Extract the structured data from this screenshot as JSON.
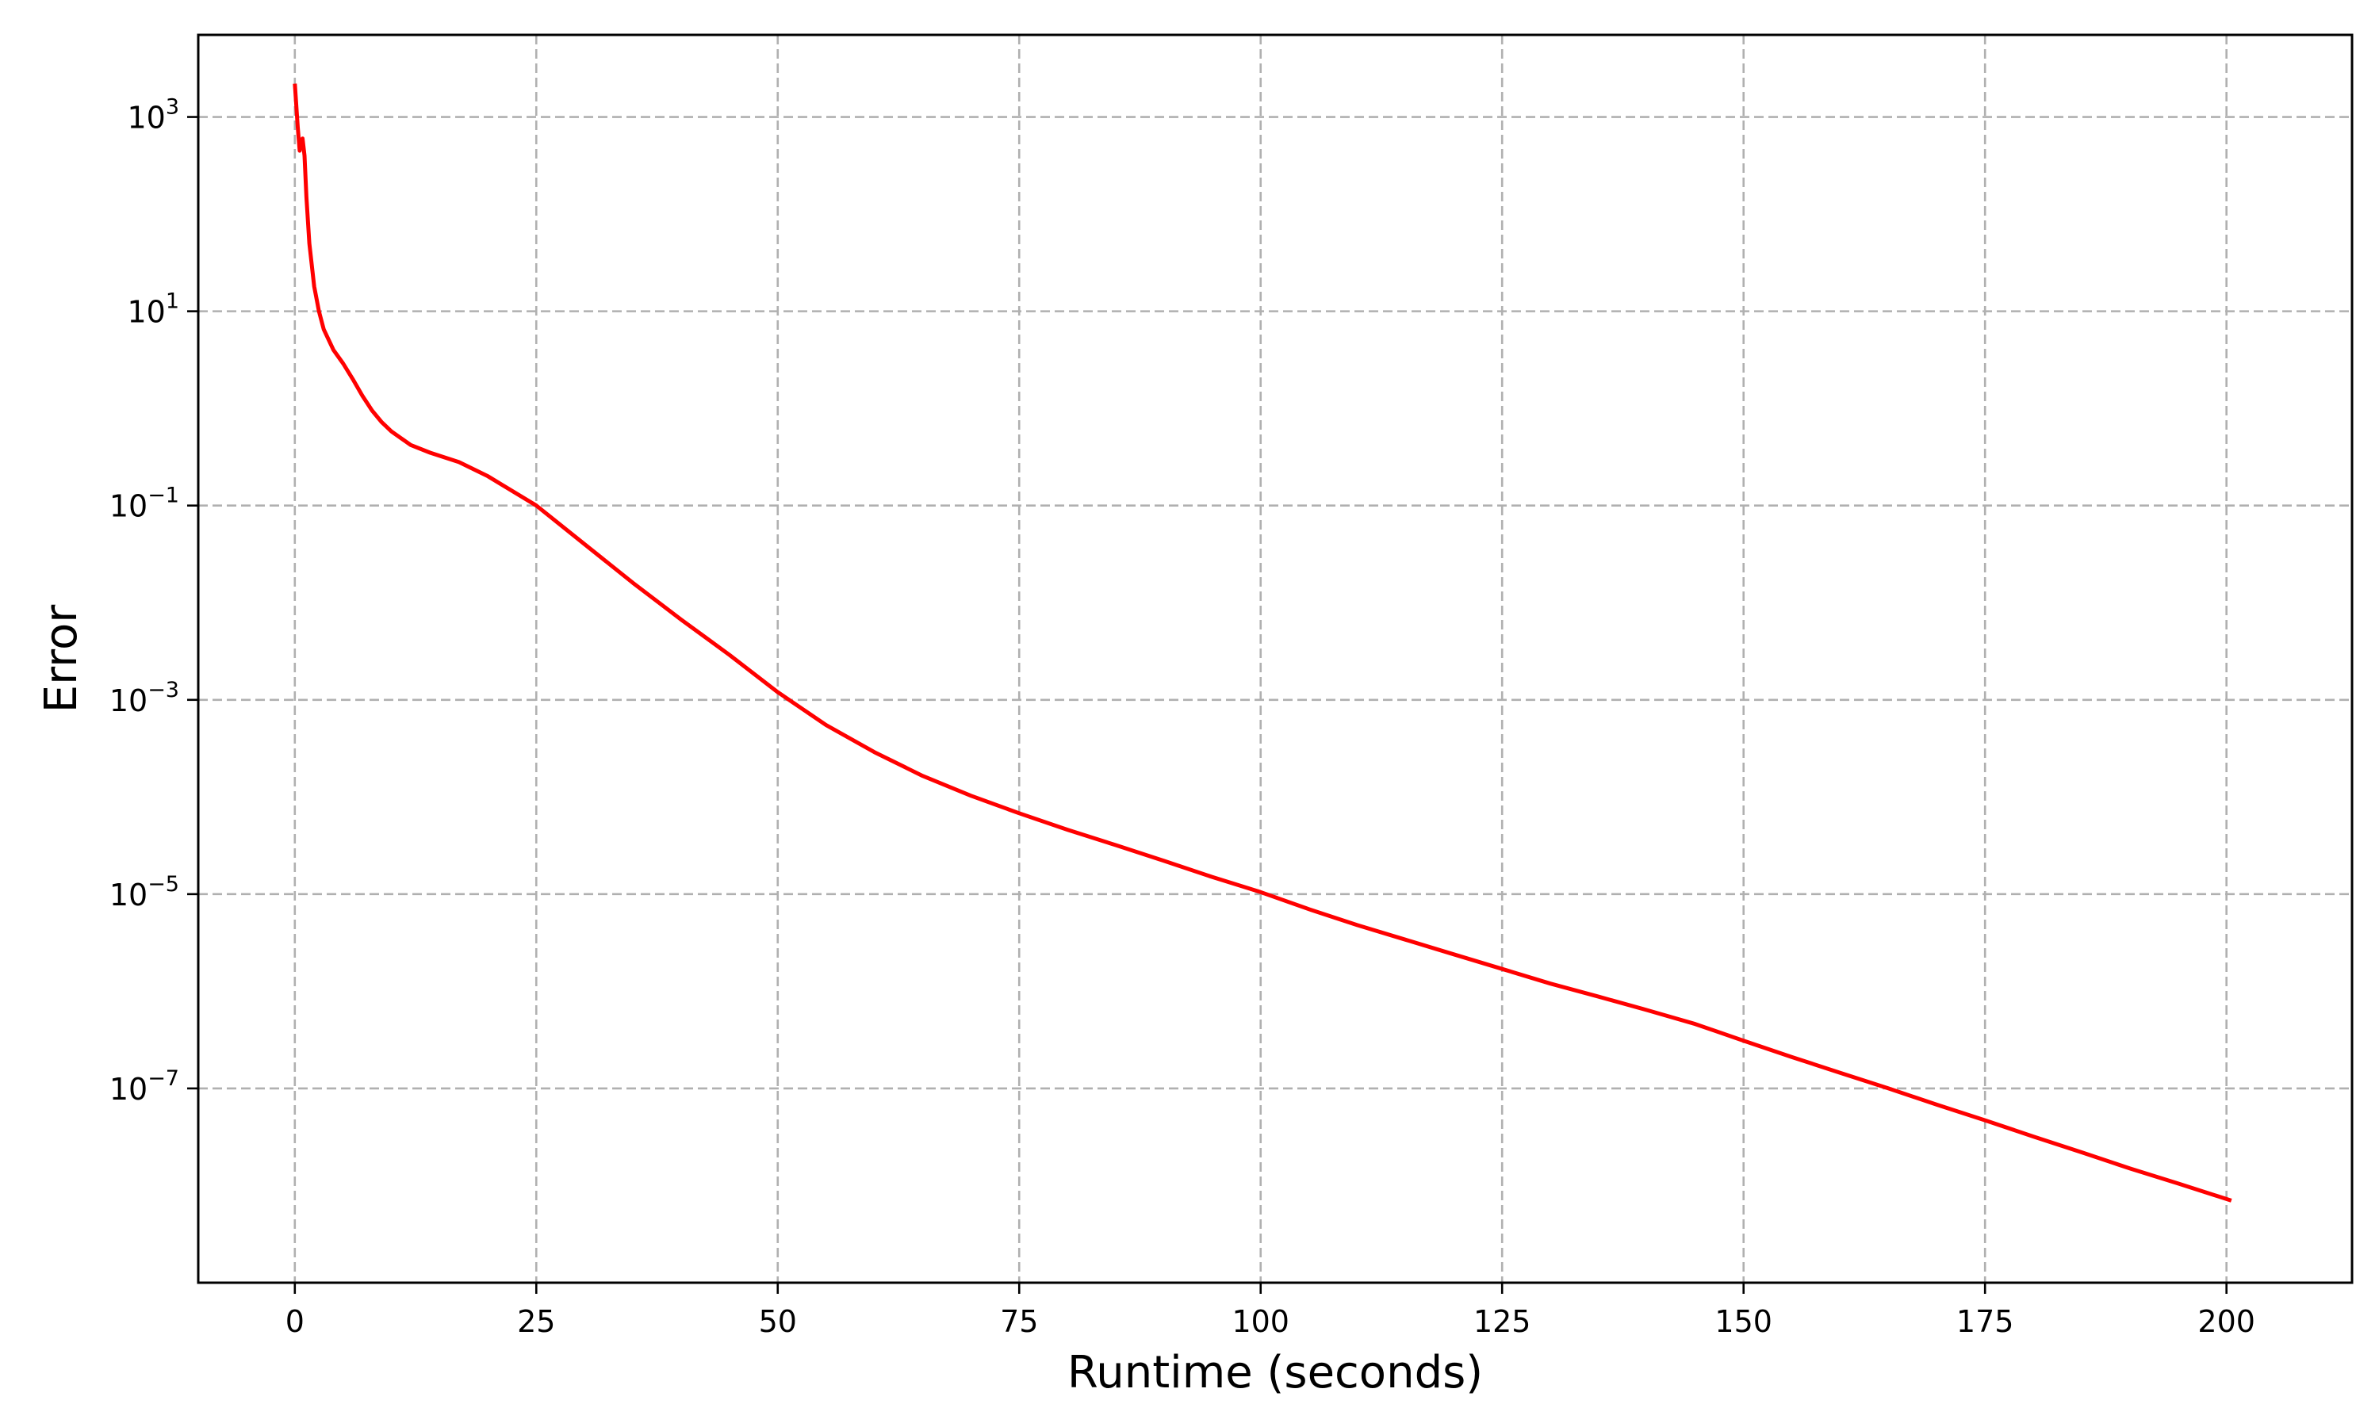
{
  "chart_data": {
    "type": "line",
    "title": "",
    "xlabel": "Runtime (seconds)",
    "ylabel": "Error",
    "xlim": [
      -10,
      213
    ],
    "ylim": [
      1e-09,
      7000
    ],
    "yscale": "log",
    "grid": true,
    "x_ticks": [
      0,
      25,
      50,
      75,
      100,
      125,
      150,
      175,
      200
    ],
    "y_ticks": [
      {
        "value": 1000.0,
        "base": "10",
        "exp": "3"
      },
      {
        "value": 10.0,
        "base": "10",
        "exp": "1"
      },
      {
        "value": 0.1,
        "base": "10",
        "exp": "−1"
      },
      {
        "value": 0.001,
        "base": "10",
        "exp": "−3"
      },
      {
        "value": 1e-05,
        "base": "10",
        "exp": "−5"
      },
      {
        "value": 1e-07,
        "base": "10",
        "exp": "−7"
      }
    ],
    "series": [
      {
        "color": "#ff0000",
        "x": [
          0.0,
          0.3,
          0.5,
          0.8,
          1.0,
          1.2,
          1.5,
          2.0,
          2.5,
          3.0,
          4.0,
          5.0,
          6.0,
          7.0,
          8.0,
          9.0,
          10.0,
          12.0,
          14.0,
          17.0,
          20.0,
          25.0,
          30.0,
          35.0,
          40.0,
          45.0,
          50.0,
          55.0,
          60.0,
          65.0,
          70.0,
          75.0,
          80.0,
          85.0,
          90.0,
          95.0,
          100.0,
          105.0,
          110.0,
          115.0,
          120.0,
          125.0,
          130.0,
          135.0,
          140.0,
          145.0,
          150.0,
          155.0,
          160.0,
          165.0,
          170.0,
          175.0,
          180.0,
          185.0,
          190.0,
          195.0,
          200.5
        ],
        "y": [
          2200,
          800,
          450,
          600,
          400,
          150,
          50,
          18,
          10,
          6.5,
          4.0,
          2.9,
          2.0,
          1.35,
          0.95,
          0.72,
          0.58,
          0.42,
          0.35,
          0.28,
          0.2,
          0.1,
          0.04,
          0.016,
          0.0067,
          0.0029,
          0.0012,
          0.00055,
          0.00029,
          0.000165,
          0.000103,
          6.8e-05,
          4.6e-05,
          3.2e-05,
          2.2e-05,
          1.5e-05,
          1.05e-05,
          7e-06,
          4.8e-06,
          3.4e-06,
          2.4e-06,
          1.7e-06,
          1.2e-06,
          8.8e-07,
          6.4e-07,
          4.6e-07,
          3.1e-07,
          2.1e-07,
          1.45e-07,
          1e-07,
          6.8e-08,
          4.7e-08,
          3.2e-08,
          2.2e-08,
          1.5e-08,
          1.05e-08,
          7e-09
        ]
      }
    ]
  }
}
